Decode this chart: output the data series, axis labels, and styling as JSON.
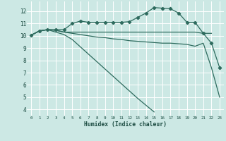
{
  "title": "",
  "xlabel": "Humidex (Indice chaleur)",
  "bg_color": "#cce8e4",
  "grid_color": "#ffffff",
  "line_color": "#2e6b5e",
  "xlim": [
    -0.5,
    23.5
  ],
  "ylim": [
    3.5,
    12.8
  ],
  "yticks": [
    4,
    5,
    6,
    7,
    8,
    9,
    10,
    11,
    12
  ],
  "xticks": [
    0,
    1,
    2,
    3,
    4,
    5,
    6,
    7,
    8,
    9,
    10,
    11,
    12,
    13,
    14,
    15,
    16,
    17,
    18,
    19,
    20,
    21,
    22,
    23
  ],
  "series": [
    {
      "x": [
        0,
        1,
        2,
        3,
        4,
        5,
        6,
        7,
        8,
        9,
        10,
        11,
        12,
        13,
        14,
        15,
        16,
        17,
        18,
        19,
        20,
        21,
        22,
        23
      ],
      "y": [
        10.05,
        10.4,
        10.5,
        10.5,
        10.5,
        11.0,
        11.2,
        11.1,
        11.1,
        11.1,
        11.1,
        11.1,
        11.15,
        11.5,
        11.85,
        12.3,
        12.25,
        12.2,
        11.85,
        11.1,
        11.1,
        10.2,
        9.4,
        7.4
      ],
      "marker": true
    },
    {
      "x": [
        0,
        1,
        2,
        3,
        4,
        5,
        6,
        7,
        8,
        9,
        10,
        11,
        12,
        13,
        14,
        15,
        16,
        17,
        18,
        19,
        20,
        21,
        22
      ],
      "y": [
        10.05,
        10.4,
        10.5,
        10.45,
        10.3,
        10.3,
        10.3,
        10.3,
        10.3,
        10.3,
        10.3,
        10.3,
        10.3,
        10.3,
        10.3,
        10.3,
        10.3,
        10.3,
        10.3,
        10.3,
        10.3,
        10.2,
        10.2
      ],
      "marker": false
    },
    {
      "x": [
        0,
        1,
        2,
        3,
        4,
        5,
        6,
        7,
        8,
        9,
        10,
        11,
        12,
        13,
        14,
        15,
        16,
        17,
        18,
        19,
        20,
        21,
        22,
        23
      ],
      "y": [
        10.05,
        10.4,
        10.5,
        10.45,
        10.3,
        10.2,
        10.1,
        10.0,
        9.9,
        9.85,
        9.75,
        9.7,
        9.6,
        9.55,
        9.5,
        9.45,
        9.4,
        9.4,
        9.35,
        9.3,
        9.15,
        9.4,
        7.4,
        5.0
      ],
      "marker": false
    },
    {
      "x": [
        0,
        1,
        2,
        3,
        4,
        5,
        6,
        7,
        8,
        9,
        10,
        11,
        12,
        13,
        14,
        15,
        16,
        17,
        18
      ],
      "y": [
        10.05,
        10.4,
        10.5,
        10.3,
        10.1,
        9.7,
        9.1,
        8.5,
        7.9,
        7.3,
        6.7,
        6.1,
        5.5,
        4.9,
        4.35,
        3.8,
        null,
        null,
        null
      ],
      "marker": false
    }
  ]
}
